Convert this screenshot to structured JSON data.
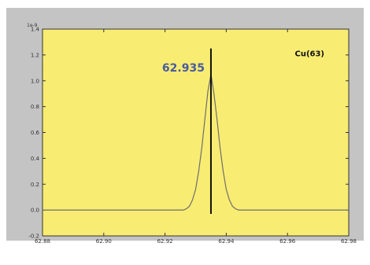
{
  "chart_data": {
    "type": "line",
    "title": "",
    "xlabel": "",
    "ylabel": "",
    "exponent_label": "1e-9",
    "xlim": [
      62.88,
      62.98
    ],
    "ylim": [
      -0.2,
      1.4
    ],
    "y_scale_factor": 1e-09,
    "x_ticks": [
      "62.88",
      "62.90",
      "62.92",
      "62.94",
      "62.96",
      "62.98"
    ],
    "y_ticks": [
      "-0.2",
      "0.0",
      "0.2",
      "0.4",
      "0.6",
      "0.8",
      "1.0",
      "1.2",
      "1.4"
    ],
    "grid": false,
    "series": [
      {
        "name": "Cu(63)",
        "color": "#6e6e6e",
        "x": [
          62.88,
          62.926,
          62.927,
          62.928,
          62.929,
          62.93,
          62.931,
          62.932,
          62.933,
          62.934,
          62.935,
          62.936,
          62.937,
          62.938,
          62.939,
          62.94,
          62.941,
          62.942,
          62.943,
          62.944,
          62.98
        ],
        "y": [
          0.0,
          0.0,
          0.01,
          0.03,
          0.08,
          0.16,
          0.3,
          0.48,
          0.7,
          0.92,
          1.05,
          0.9,
          0.7,
          0.48,
          0.3,
          0.16,
          0.08,
          0.03,
          0.01,
          0.0,
          0.0
        ]
      }
    ],
    "peak_marker": {
      "x": 62.935,
      "y_from": -0.03,
      "y_to": 1.25,
      "label": "62.935",
      "label_color": "#4a5aa0"
    },
    "legend_text": "Cu(63)",
    "legend_position": "top-right",
    "background_color": "#f8ec72",
    "frame_color": "#c4c4c4",
    "axes_color": "#333333"
  }
}
